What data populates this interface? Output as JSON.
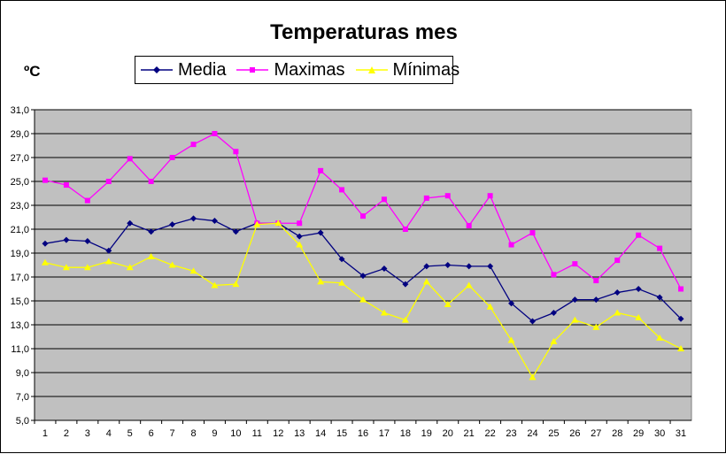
{
  "chart_data": {
    "type": "line",
    "title": "Temperaturas mes",
    "ylabel": "ºC",
    "xlabel": "",
    "ylim": [
      5,
      31
    ],
    "yticks": [
      "5,0",
      "7,0",
      "9,0",
      "11,0",
      "13,0",
      "15,0",
      "17,0",
      "19,0",
      "21,0",
      "23,0",
      "25,0",
      "27,0",
      "29,0",
      "31,0"
    ],
    "grid": true,
    "legend": "top",
    "plot_background": "#C0C0C0",
    "x": [
      1,
      2,
      3,
      4,
      5,
      6,
      7,
      8,
      9,
      10,
      11,
      12,
      13,
      14,
      15,
      16,
      17,
      18,
      19,
      20,
      21,
      22,
      23,
      24,
      25,
      26,
      27,
      28,
      29,
      30,
      31
    ],
    "series": [
      {
        "name": "Media",
        "color": "#000080",
        "marker": "diamond",
        "values": [
          19.8,
          20.1,
          20.0,
          19.2,
          21.5,
          20.8,
          21.4,
          21.9,
          21.7,
          20.8,
          21.5,
          21.5,
          20.4,
          20.7,
          18.5,
          17.1,
          17.7,
          16.4,
          17.9,
          18.0,
          17.9,
          17.9,
          14.8,
          13.3,
          14.0,
          15.1,
          15.1,
          15.7,
          16.0,
          15.3,
          13.5
        ]
      },
      {
        "name": "Maximas",
        "color": "#FF00FF",
        "marker": "square",
        "values": [
          25.1,
          24.7,
          23.4,
          25.0,
          26.9,
          25.0,
          27.0,
          28.1,
          29.0,
          27.5,
          21.5,
          21.5,
          21.5,
          25.9,
          24.3,
          22.1,
          23.5,
          21.0,
          23.6,
          23.8,
          21.3,
          23.8,
          19.7,
          20.7,
          17.2,
          18.1,
          16.7,
          18.4,
          20.5,
          19.4,
          16.0
        ]
      },
      {
        "name": "Mínimas",
        "color": "#FFFF00",
        "marker": "triangle",
        "values": [
          18.2,
          17.8,
          17.8,
          18.3,
          17.8,
          18.7,
          18.0,
          17.5,
          16.3,
          16.4,
          21.4,
          21.5,
          19.7,
          16.6,
          16.5,
          15.1,
          14.0,
          13.4,
          16.6,
          14.7,
          16.3,
          14.5,
          11.7,
          8.6,
          11.6,
          13.4,
          12.8,
          14.0,
          13.6,
          11.9,
          11.0
        ]
      }
    ]
  }
}
